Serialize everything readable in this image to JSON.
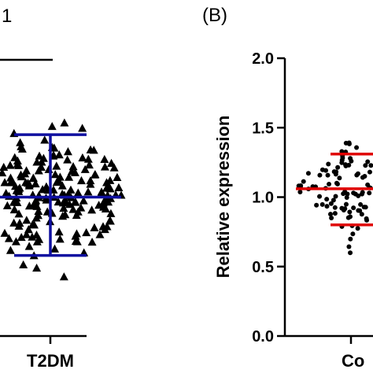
{
  "panel_labels": {
    "left": "1",
    "right": "(B)"
  },
  "colors": {
    "left_markers": "#000000",
    "left_bars": "#1010a0",
    "right_markers": "#000000",
    "right_bars": "#e00000",
    "axis": "#000000"
  },
  "chart_data": [
    {
      "type": "scatter",
      "panel": "left",
      "marker": "triangle",
      "categories": [
        "T2DM"
      ],
      "summary": {
        "mean": 1.0,
        "sd_upper": 1.45,
        "sd_lower": 0.58
      },
      "significance_bar": true,
      "point_count_estimate": 220
    },
    {
      "type": "scatter",
      "panel": "right",
      "marker": "circle",
      "ylabel": "Relative expression",
      "ylim": [
        0.0,
        2.0
      ],
      "yticks": [
        "0.0",
        "0.5",
        "1.0",
        "1.5",
        "2.0"
      ],
      "categories": [
        "Co"
      ],
      "summary": {
        "mean": 1.06,
        "sd_upper": 1.31,
        "sd_lower": 0.8
      },
      "point_count_estimate": 120
    }
  ]
}
